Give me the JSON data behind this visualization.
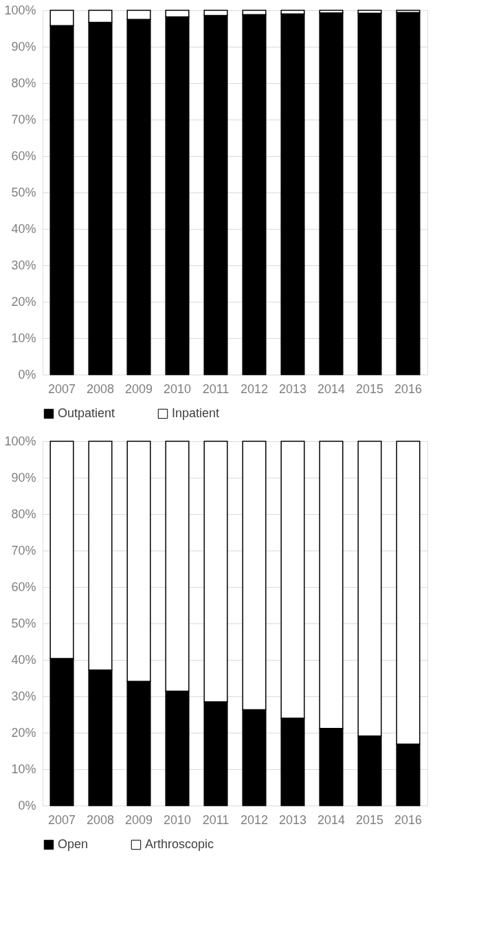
{
  "chart_data": [
    {
      "type": "bar",
      "stacked": true,
      "categories": [
        "2007",
        "2008",
        "2009",
        "2010",
        "2011",
        "2012",
        "2013",
        "2014",
        "2015",
        "2016"
      ],
      "series": [
        {
          "name": "Outpatient",
          "color": "#000000",
          "values": [
            95.8,
            96.7,
            97.5,
            98.2,
            98.6,
            98.8,
            99.0,
            99.3,
            99.2,
            99.4
          ]
        },
        {
          "name": "Inpatient",
          "color": "#ffffff",
          "values": [
            4.2,
            3.3,
            2.5,
            1.8,
            1.4,
            1.2,
            1.0,
            0.7,
            0.8,
            0.6
          ]
        }
      ],
      "ylim": [
        0,
        100
      ],
      "yticks": [
        {
          "value": 0,
          "label": "0%"
        },
        {
          "value": 10,
          "label": "10%"
        },
        {
          "value": 20,
          "label": "20%"
        },
        {
          "value": 30,
          "label": "30%"
        },
        {
          "value": 40,
          "label": "40%"
        },
        {
          "value": 50,
          "label": "50%"
        },
        {
          "value": 60,
          "label": "60%"
        },
        {
          "value": 70,
          "label": "70%"
        },
        {
          "value": 80,
          "label": "80%"
        },
        {
          "value": 90,
          "label": "90%"
        },
        {
          "value": 100,
          "label": "100%"
        }
      ],
      "grid": "y",
      "legend": "bottom"
    },
    {
      "type": "bar",
      "stacked": true,
      "categories": [
        "2007",
        "2008",
        "2009",
        "2010",
        "2011",
        "2012",
        "2013",
        "2014",
        "2015",
        "2016"
      ],
      "series": [
        {
          "name": "Open",
          "color": "#000000",
          "values": [
            40.4,
            37.2,
            34.1,
            31.4,
            28.5,
            26.3,
            24.0,
            21.2,
            19.1,
            16.9
          ]
        },
        {
          "name": "Arthroscopic",
          "color": "#ffffff",
          "values": [
            59.6,
            62.8,
            65.9,
            68.6,
            71.5,
            73.7,
            76.0,
            78.8,
            80.9,
            83.1
          ]
        }
      ],
      "ylim": [
        0,
        100
      ],
      "yticks": [
        {
          "value": 0,
          "label": "0%"
        },
        {
          "value": 10,
          "label": "10%"
        },
        {
          "value": 20,
          "label": "20%"
        },
        {
          "value": 30,
          "label": "30%"
        },
        {
          "value": 40,
          "label": "40%"
        },
        {
          "value": 50,
          "label": "50%"
        },
        {
          "value": 60,
          "label": "60%"
        },
        {
          "value": 70,
          "label": "70%"
        },
        {
          "value": 80,
          "label": "80%"
        },
        {
          "value": 90,
          "label": "90%"
        },
        {
          "value": 100,
          "label": "100%"
        }
      ],
      "grid": "y",
      "legend": "bottom"
    }
  ]
}
